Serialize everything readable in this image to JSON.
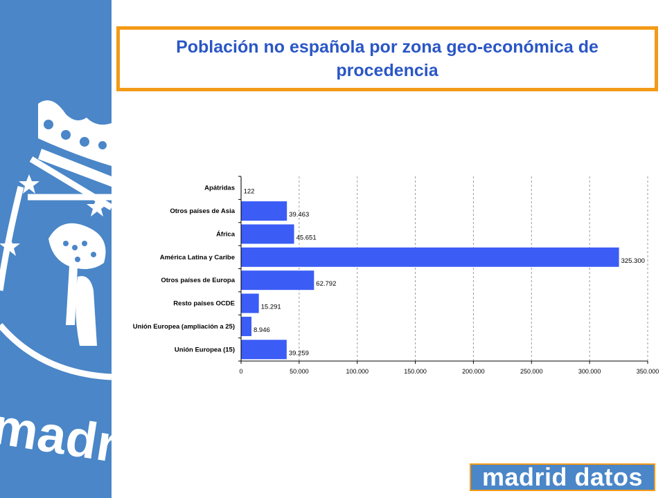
{
  "title": "Población no española por zona geo-económica de procedencia",
  "logo": {
    "text": "madrid datos",
    "emblem_text": "madrid"
  },
  "colors": {
    "sidebar": "#4a86c8",
    "accent_orange": "#f39a17",
    "title_blue": "#2a56c6",
    "bar": "#3b5cf5"
  },
  "chart_data": {
    "type": "bar",
    "orientation": "horizontal",
    "title": "",
    "xlabel": "",
    "ylabel": "",
    "categories": [
      "Apátridas",
      "Otros países de Asia",
      "África",
      "América Latina y Caribe",
      "Otros países de Europa",
      "Resto países OCDE",
      "Unión Europea (ampliación a 25)",
      "Unión Europea (15)"
    ],
    "values": [
      122,
      39463,
      45651,
      325300,
      62792,
      15291,
      8946,
      39259
    ],
    "value_labels": [
      "122",
      "39.463",
      "45.651",
      "325.300",
      "62.792",
      "15.291",
      "8.946",
      "39.259"
    ],
    "xlim": [
      0,
      350000
    ],
    "xticks": [
      0,
      50000,
      100000,
      150000,
      200000,
      250000,
      300000,
      350000
    ],
    "xtick_labels": [
      "0",
      "50.000",
      "100.000",
      "150.000",
      "200.000",
      "250.000",
      "300.000",
      "350.000"
    ],
    "grid": "vertical dashed",
    "legend": "none"
  }
}
